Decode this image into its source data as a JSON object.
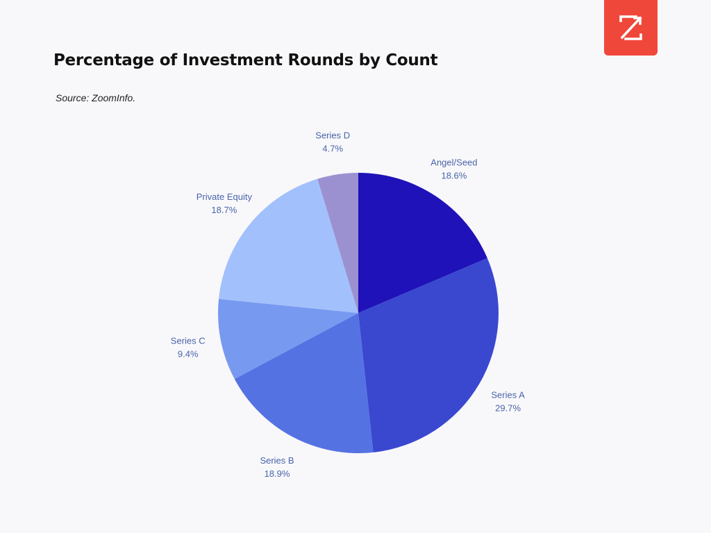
{
  "brand": {
    "name": "ZoomInfo",
    "color": "#f0473b"
  },
  "chart_data": {
    "type": "pie",
    "title": "Percentage of Investment Rounds by Count",
    "source": "Source: ZoomInfo.",
    "start": "top",
    "direction": "clockwise",
    "slices": [
      {
        "label": "Angel/Seed",
        "value": 18.6,
        "display": "18.6%",
        "color": "#1f12b8"
      },
      {
        "label": "Series A",
        "value": 29.7,
        "display": "29.7%",
        "color": "#3a48d0"
      },
      {
        "label": "Series B",
        "value": 18.9,
        "display": "18.9%",
        "color": "#5572e2"
      },
      {
        "label": "Series C",
        "value": 9.4,
        "display": "9.4%",
        "color": "#7899f0"
      },
      {
        "label": "Private Equity",
        "value": 18.7,
        "display": "18.7%",
        "color": "#a2c0fc"
      },
      {
        "label": "Series D",
        "value": 4.7,
        "display": "4.7%",
        "color": "#9c91d0"
      }
    ]
  }
}
